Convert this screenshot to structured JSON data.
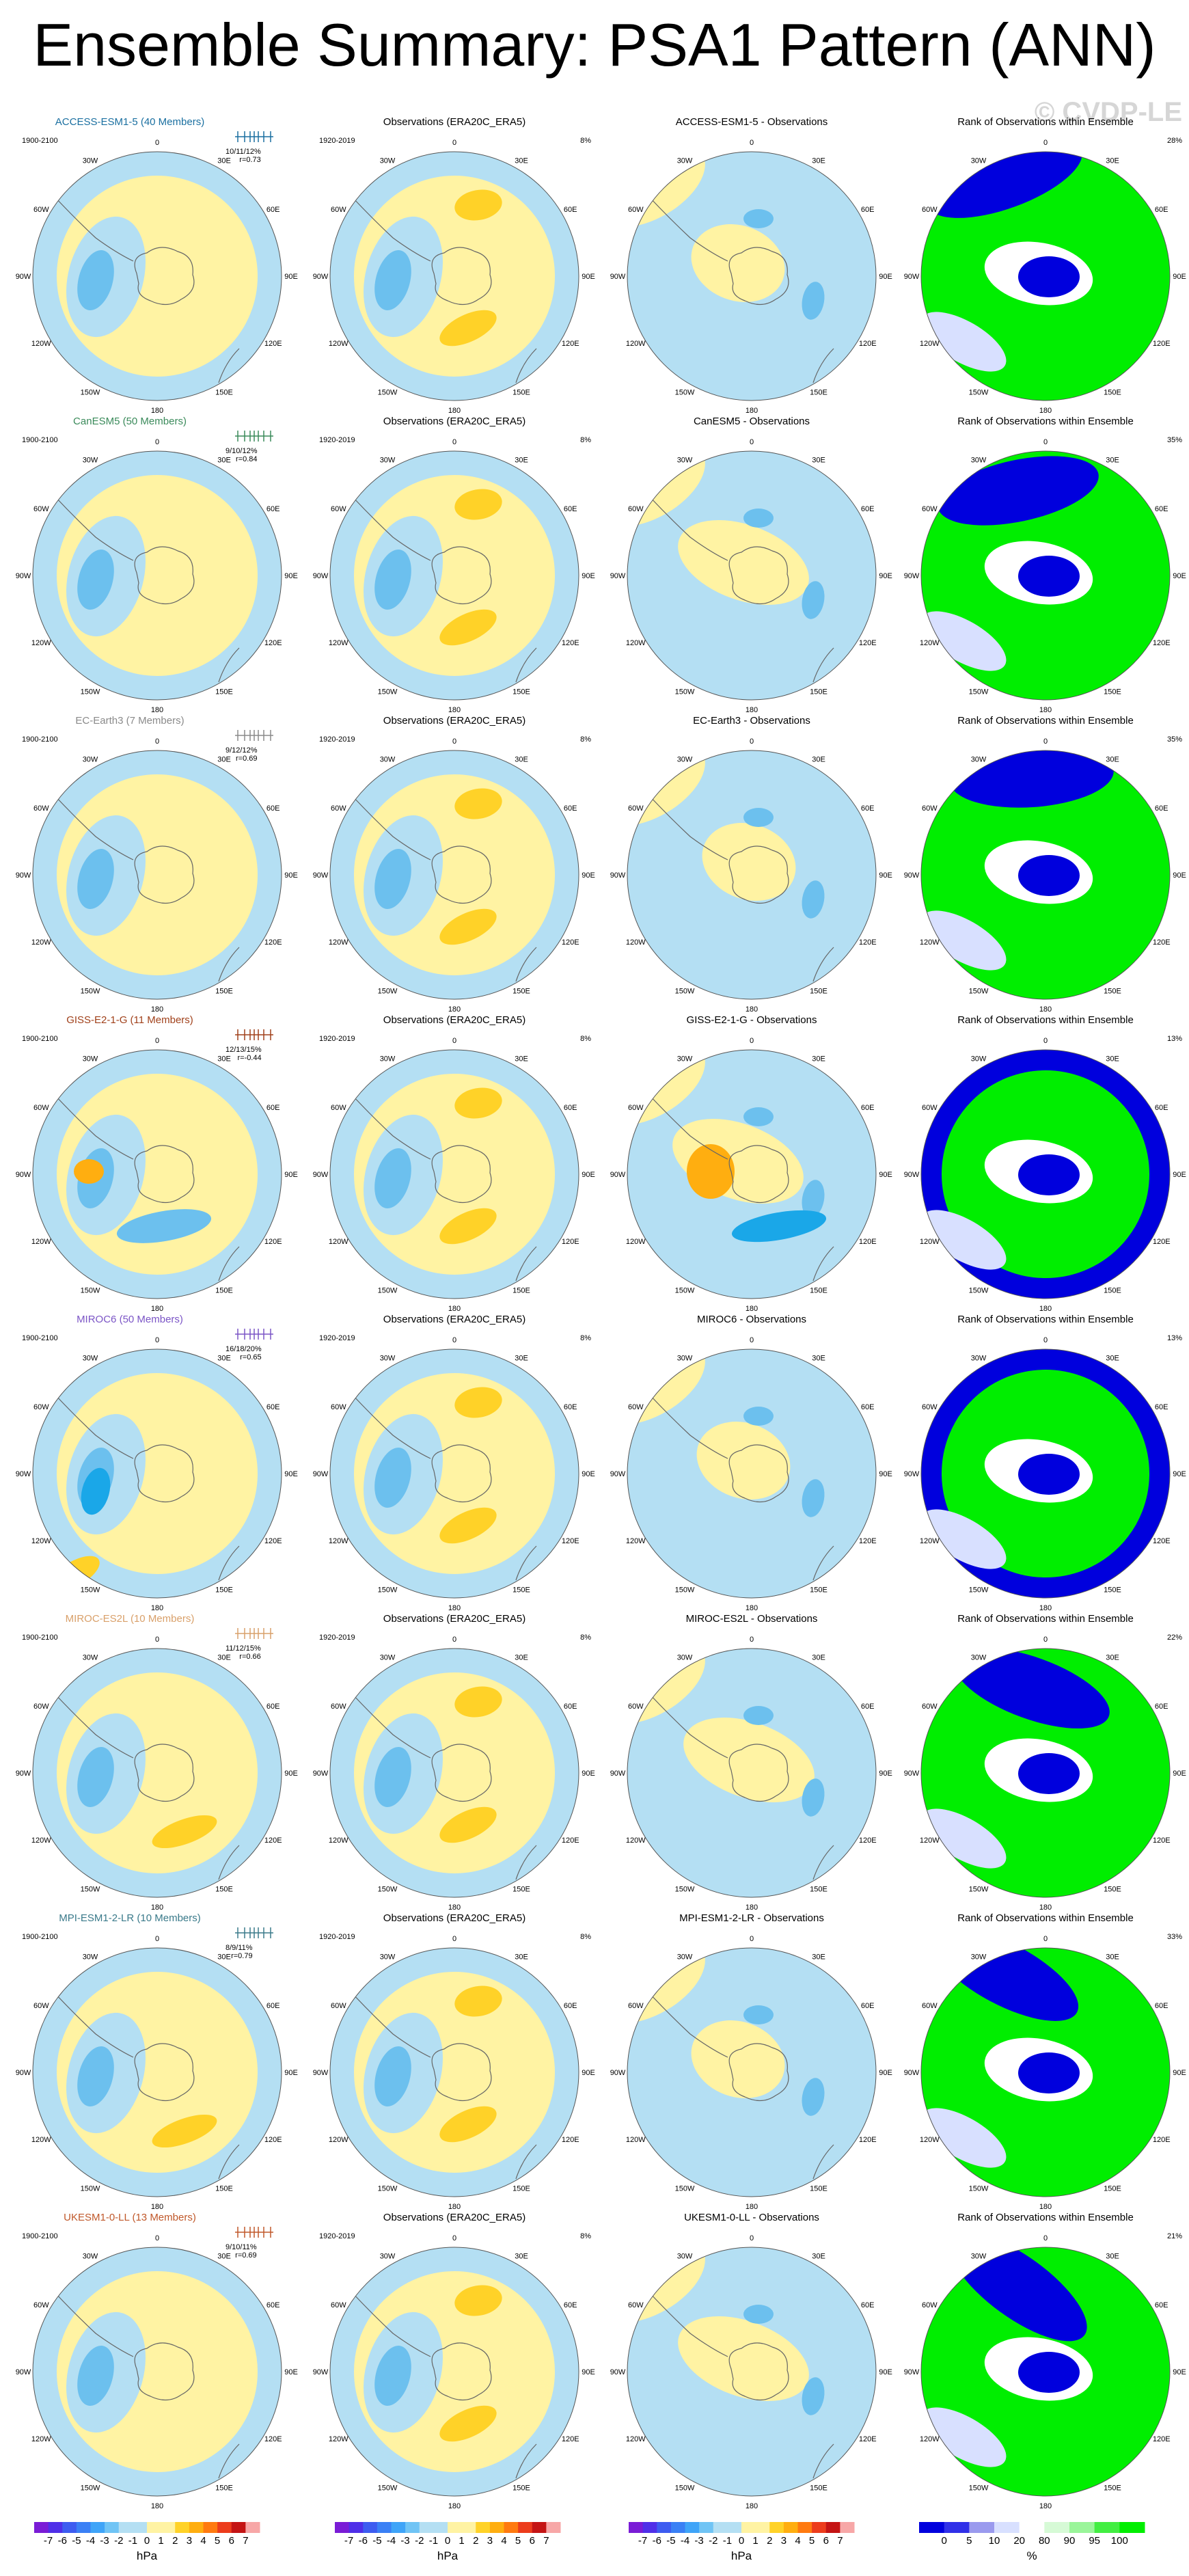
{
  "title": "Ensemble Summary: PSA1 Pattern (ANN)",
  "watermark": "© CVDP-LE",
  "colors": {
    "ocean_pos": "#fff3a3",
    "ocean_neg": "#b4dff3",
    "strong_neg": "#6cc0ee",
    "strongest_neg": "#1aa7e8",
    "pos_mid": "#ffd228",
    "pos_strong": "#ffae10",
    "rank_green": "#00ee00",
    "rank_blue": "#0000dd",
    "rank_light": "#d8e0ff",
    "coast": "#666666"
  },
  "colorbars": [
    {
      "unit": "hPa",
      "labels": [
        "-7",
        "-6",
        "-5",
        "-4",
        "-3",
        "-2",
        "-1",
        "0",
        "1",
        "2",
        "3",
        "4",
        "5",
        "6",
        "7"
      ],
      "colors": [
        "#7a1cd6",
        "#4f2fe8",
        "#3d5cf0",
        "#3a80f5",
        "#3fa4f8",
        "#70c4f5",
        "#b4dff3",
        "#b4dff3",
        "#fff3a3",
        "#fff3a3",
        "#ffd228",
        "#ffae10",
        "#ff7a10",
        "#ec3c1c",
        "#c41414",
        "#f7a7a7"
      ]
    },
    {
      "unit": "hPa",
      "labels": [
        "-7",
        "-6",
        "-5",
        "-4",
        "-3",
        "-2",
        "-1",
        "0",
        "1",
        "2",
        "3",
        "4",
        "5",
        "6",
        "7"
      ],
      "colors": [
        "#7a1cd6",
        "#4f2fe8",
        "#3d5cf0",
        "#3a80f5",
        "#3fa4f8",
        "#70c4f5",
        "#b4dff3",
        "#b4dff3",
        "#fff3a3",
        "#fff3a3",
        "#ffd228",
        "#ffae10",
        "#ff7a10",
        "#ec3c1c",
        "#c41414",
        "#f7a7a7"
      ]
    },
    {
      "unit": "hPa",
      "labels": [
        "-7",
        "-6",
        "-5",
        "-4",
        "-3",
        "-2",
        "-1",
        "0",
        "1",
        "2",
        "3",
        "4",
        "5",
        "6",
        "7"
      ],
      "colors": [
        "#7a1cd6",
        "#4f2fe8",
        "#3d5cf0",
        "#3a80f5",
        "#3fa4f8",
        "#70c4f5",
        "#b4dff3",
        "#b4dff3",
        "#fff3a3",
        "#fff3a3",
        "#ffd228",
        "#ffae10",
        "#ff7a10",
        "#ec3c1c",
        "#c41414",
        "#f7a7a7"
      ]
    },
    {
      "unit": "%",
      "labels": [
        "0",
        "5",
        "10",
        "20",
        "80",
        "90",
        "95",
        "100"
      ],
      "colors": [
        "#0000dd",
        "#3030e8",
        "#9a9aee",
        "#d8e0ff",
        "#ffffff",
        "#d6fad6",
        "#9af59a",
        "#42ee42",
        "#00ee00"
      ]
    }
  ],
  "lon_labels": [
    "0",
    "30E",
    "60E",
    "90E",
    "120E",
    "150E",
    "180",
    "150W",
    "120W",
    "90W",
    "60W",
    "30W"
  ],
  "obs_title": "Observations (ERA20C_ERA5)",
  "obs_period": "1920-2019",
  "obs_pct": "8%",
  "rank_title": "Rank of Observations within Ensemble",
  "model_period": "1900-2100",
  "rows": [
    {
      "model": "ACCESS-ESM1-5 (40 Members)",
      "color": "#1a6fa0",
      "stats1": "10/11/12%",
      "stats2": "r=0.73",
      "diff": "ACCESS-ESM1-5 - Observations",
      "rank_pct": "28%"
    },
    {
      "model": "CanESM5 (50 Members)",
      "color": "#3a8a5a",
      "stats1": "9/10/12%",
      "stats2": "r=0.84",
      "diff": "CanESM5 - Observations",
      "rank_pct": "35%"
    },
    {
      "model": "EC-Earth3 (7 Members)",
      "color": "#8a8a8a",
      "stats1": "9/12/12%",
      "stats2": "r=0.69",
      "diff": "EC-Earth3 - Observations",
      "rank_pct": "35%"
    },
    {
      "model": "GISS-E2-1-G (11 Members)",
      "color": "#a0401a",
      "stats1": "12/13/15%",
      "stats2": "r=-0.44",
      "diff": "GISS-E2-1-G - Observations",
      "rank_pct": "13%"
    },
    {
      "model": "MIROC6 (50 Members)",
      "color": "#7b55c6",
      "stats1": "16/18/20%",
      "stats2": "r=0.65",
      "diff": "MIROC6 - Observations",
      "rank_pct": "13%"
    },
    {
      "model": "MIROC-ES2L (10 Members)",
      "color": "#d9a06a",
      "stats1": "11/12/15%",
      "stats2": "r=0.66",
      "diff": "MIROC-ES2L - Observations",
      "rank_pct": "22%"
    },
    {
      "model": "MPI-ESM1-2-LR (10 Members)",
      "color": "#3a7a8a",
      "stats1": "8/9/11%",
      "stats2": "r=0.79",
      "diff": "MPI-ESM1-2-LR - Observations",
      "rank_pct": "33%"
    },
    {
      "model": "UKESM1-0-LL (13 Members)",
      "color": "#c0582a",
      "stats1": "9/10/11%",
      "stats2": "r=0.69",
      "diff": "UKESM1-0-LL - Observations",
      "rank_pct": "21%"
    }
  ]
}
